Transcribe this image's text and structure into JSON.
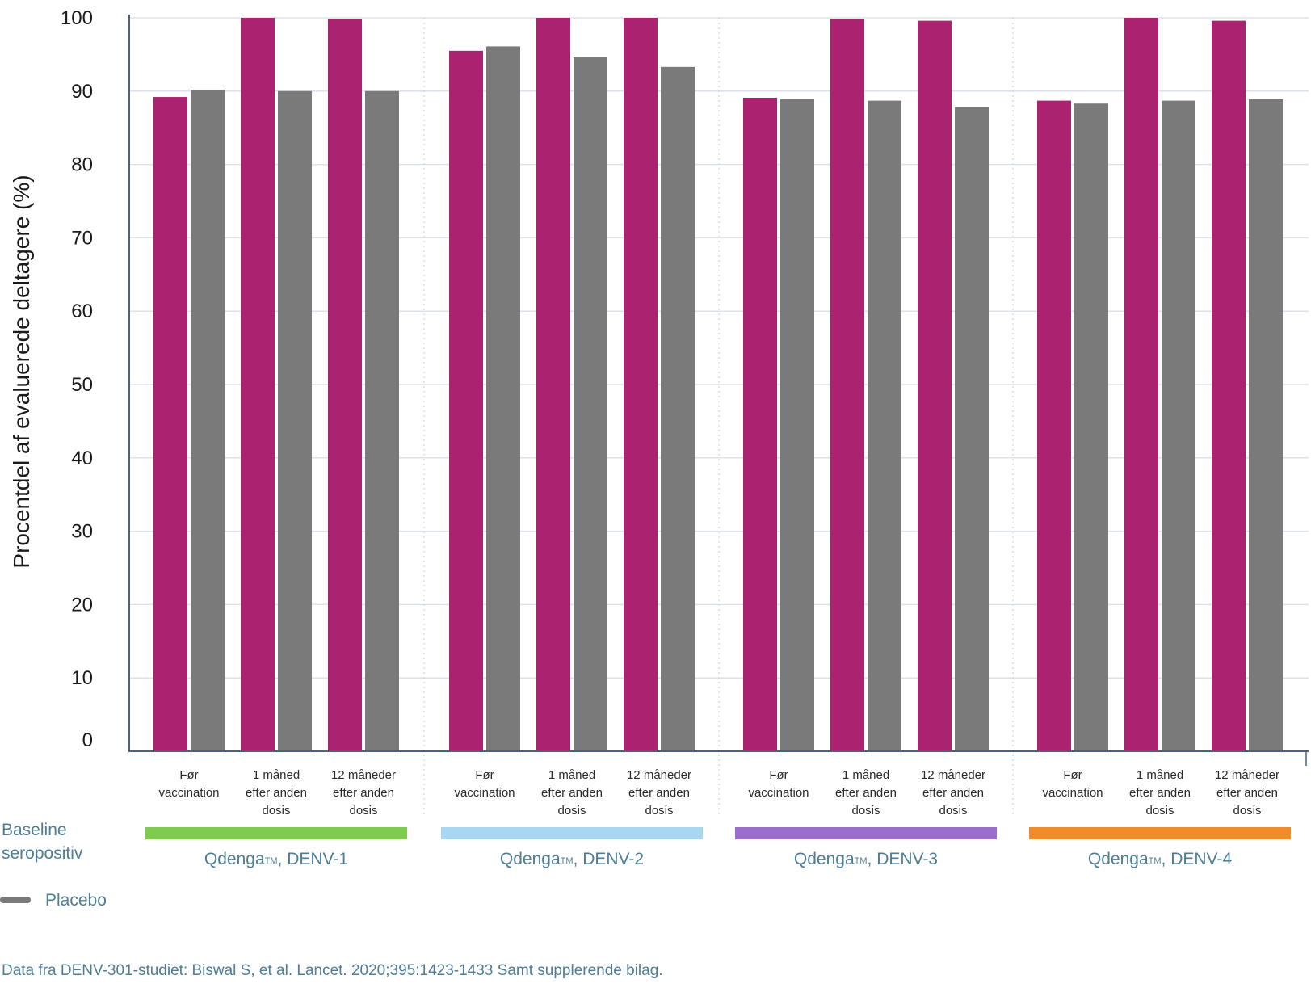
{
  "chart_data": {
    "type": "bar",
    "ylabel": "Procentdel af evaluerede deltagere (%)",
    "ylim": [
      0,
      100
    ],
    "yticks": [
      "0",
      "10",
      "20",
      "30",
      "40",
      "50",
      "60",
      "70",
      "80",
      "90",
      "100"
    ],
    "grid": true,
    "categories": [
      [
        "Før",
        "vaccination"
      ],
      [
        "1 måned",
        "efter anden",
        "dosis"
      ],
      [
        "12 måneder",
        "efter anden",
        "dosis"
      ]
    ],
    "groups": [
      {
        "name": "Qdenga™, DENV-1",
        "label_main": "Qdenga",
        "label_tm": "TM",
        "label_rest": ", DENV-1",
        "color": "#7dcc4e",
        "qdenga": [
          89.2,
          100,
          99.8
        ],
        "placebo": [
          90.2,
          90.0,
          90.0
        ]
      },
      {
        "name": "Qdenga™, DENV-2",
        "label_main": "Qdenga",
        "label_tm": "TM",
        "label_rest": ", DENV-2",
        "color": "#a8d8f0",
        "qdenga": [
          95.5,
          100,
          100
        ],
        "placebo": [
          96.1,
          94.6,
          93.3
        ]
      },
      {
        "name": "Qdenga™, DENV-3",
        "label_main": "Qdenga",
        "label_tm": "TM",
        "label_rest": ", DENV-3",
        "color": "#9b6ecb",
        "qdenga": [
          89.1,
          99.8,
          99.6
        ],
        "placebo": [
          88.9,
          88.7,
          87.8
        ]
      },
      {
        "name": "Qdenga™, DENV-4",
        "label_main": "Qdenga",
        "label_tm": "TM",
        "label_rest": ", DENV-4",
        "color": "#f28c28",
        "qdenga": [
          88.7,
          100,
          99.6
        ],
        "placebo": [
          88.3,
          88.7,
          88.9
        ]
      }
    ],
    "series_colors": {
      "qdenga": "#ab2370",
      "placebo": "#7a7a7a"
    },
    "legend": {
      "baseline_line1": "Baseline",
      "baseline_line2": "seropositiv",
      "placebo": "Placebo",
      "placement": "bottom-left"
    }
  },
  "footer": {
    "source": "Data fra DENV-301-studiet: Biswal S, et al. Lancet. 2020;395:1423-1433 Samt supplerende bilag."
  },
  "colors": {
    "axis": "#4a6274",
    "grid": "#dde2ea",
    "label_blue": "#4e7d96"
  }
}
